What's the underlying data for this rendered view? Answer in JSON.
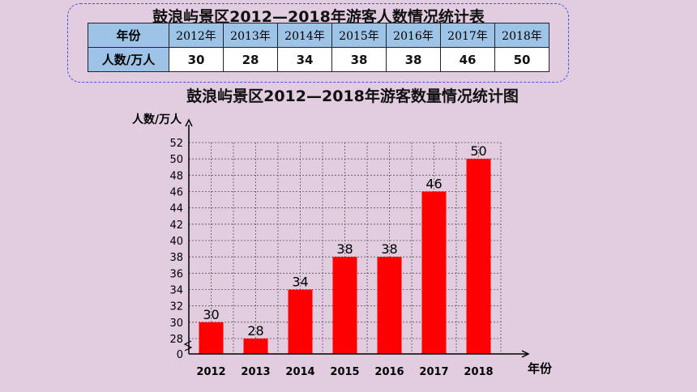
{
  "table": {
    "title": "鼓浪屿景区2012—2018年游客人数情况统计表",
    "header_label": "年份",
    "row_label": "人数/万人",
    "years": [
      "2012年",
      "2013年",
      "2014年",
      "2015年",
      "2016年",
      "2017年",
      "2018年"
    ],
    "values": [
      "30",
      "28",
      "34",
      "38",
      "38",
      "46",
      "50"
    ]
  },
  "colors": {
    "background": "#E2CCE0",
    "bar": "#FF0000",
    "header_fill": "#9DC3E6",
    "frame": "#4B50E0"
  },
  "chart_data": {
    "type": "bar",
    "title": "鼓浪屿景区2012—2018年游客数量情况统计图",
    "xlabel": "年份",
    "ylabel": "人数/万人",
    "categories": [
      "2012",
      "2013",
      "2014",
      "2015",
      "2016",
      "2017",
      "2018"
    ],
    "values": [
      30,
      28,
      34,
      38,
      38,
      46,
      50
    ],
    "ylim": [
      0,
      52
    ],
    "axis_break_below": 28,
    "yticks": [
      0,
      28,
      30,
      32,
      34,
      36,
      38,
      40,
      42,
      44,
      46,
      48,
      50,
      52
    ],
    "grid": true,
    "data_labels": true
  }
}
